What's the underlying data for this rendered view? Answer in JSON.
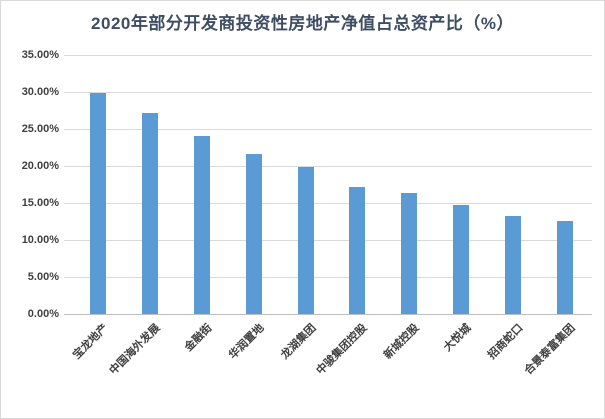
{
  "title": "2020年部分开发商投资性房地产净值占总资产比（%）",
  "colors": {
    "bar": "#5B9BD5",
    "title_text": "#3F4D63",
    "axis_text": "#404040",
    "gridline": "#D9D9D9",
    "axis_line": "#BFBFBF",
    "background": "#FFFFFF",
    "border": "#D9D9D9"
  },
  "y_axis": {
    "tick_labels": [
      "0.00%",
      "5.00%",
      "10.00%",
      "15.00%",
      "20.00%",
      "25.00%",
      "30.00%",
      "35.00%"
    ]
  },
  "chart_data": {
    "type": "bar",
    "title": "2020年部分开发商投资性房地产净值占总资产比（%）",
    "categories": [
      "宝龙地产",
      "中国海外发展",
      "金融街",
      "华润置地",
      "龙湖集团",
      "中骏集团控股",
      "新城控股",
      "大悦城",
      "招商蛇口",
      "合景泰富集团"
    ],
    "values": [
      29.8,
      27.1,
      24.1,
      21.6,
      19.9,
      17.1,
      16.4,
      14.7,
      13.3,
      12.6
    ],
    "xlabel": "",
    "ylabel": "",
    "ylim": [
      0,
      35
    ],
    "ytick_step": 5,
    "ytick_labels": [
      "0.00%",
      "5.00%",
      "10.00%",
      "15.00%",
      "20.00%",
      "25.00%",
      "30.00%",
      "35.00%"
    ],
    "grid": true,
    "legend": false,
    "bar_color": "#5B9BD5"
  }
}
